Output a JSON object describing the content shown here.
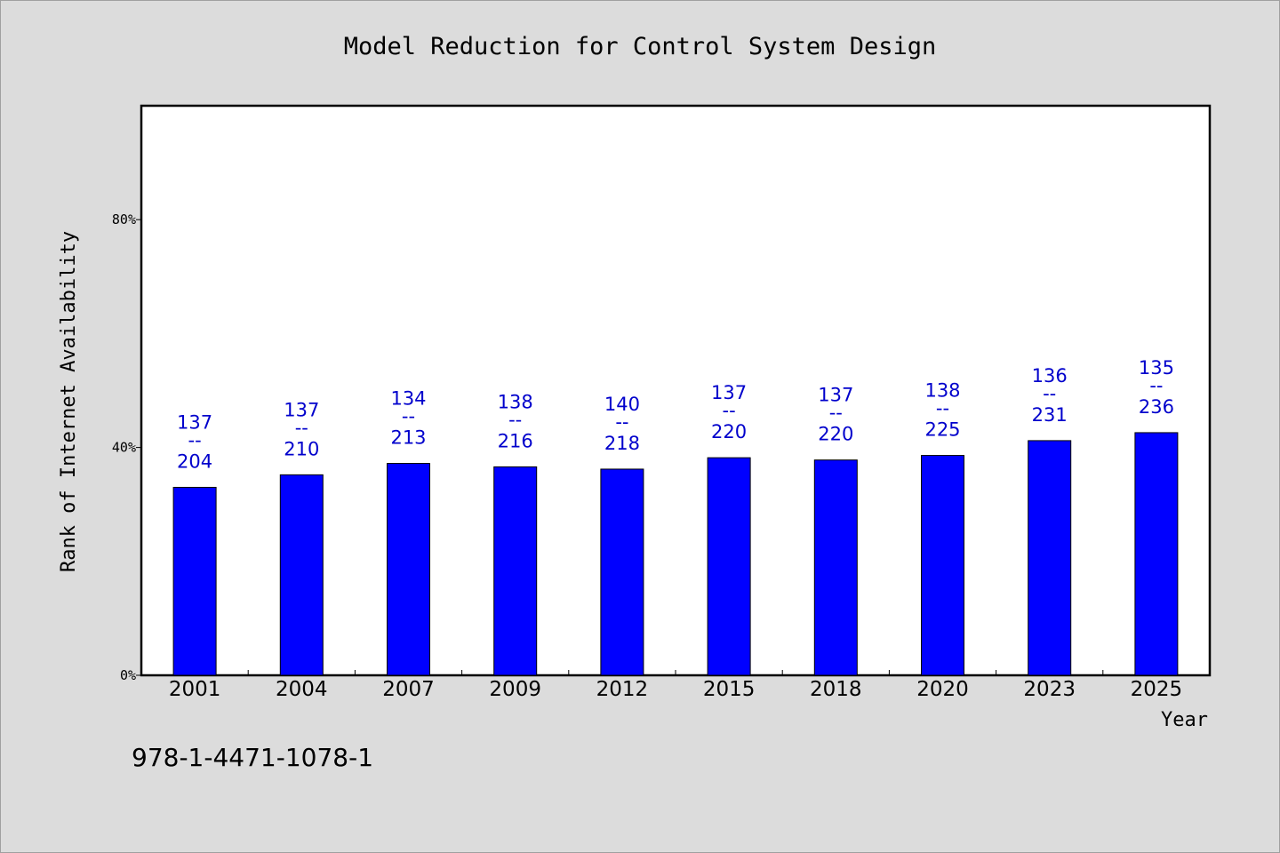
{
  "chart_data": {
    "type": "bar",
    "title": "Model Reduction for Control System Design",
    "xlabel": "Year",
    "ylabel": "Rank of Internet Availability",
    "categories": [
      "2001",
      "2004",
      "2007",
      "2009",
      "2012",
      "2015",
      "2018",
      "2020",
      "2023",
      "2025"
    ],
    "values": [
      0.33,
      0.352,
      0.372,
      0.366,
      0.362,
      0.382,
      0.378,
      0.386,
      0.412,
      0.426
    ],
    "data_labels": [
      [
        "137",
        "--",
        "204"
      ],
      [
        "137",
        "--",
        "210"
      ],
      [
        "134",
        "--",
        "213"
      ],
      [
        "138",
        "--",
        "216"
      ],
      [
        "140",
        "--",
        "218"
      ],
      [
        "137",
        "--",
        "220"
      ],
      [
        "137",
        "--",
        "220"
      ],
      [
        "138",
        "--",
        "225"
      ],
      [
        "136",
        "--",
        "231"
      ],
      [
        "135",
        "--",
        "236"
      ]
    ],
    "ylim": [
      0,
      1.0
    ],
    "yticks": [
      0,
      0.4,
      0.8
    ],
    "ytick_labels": [
      "0%",
      "40%",
      "80%"
    ],
    "grid": false,
    "bar_color": "#0000ff",
    "label_color": "#0000cc",
    "background": "#dcdcdc",
    "plot_background": "#ffffff"
  },
  "footnote": "978-1-4471-1078-1"
}
